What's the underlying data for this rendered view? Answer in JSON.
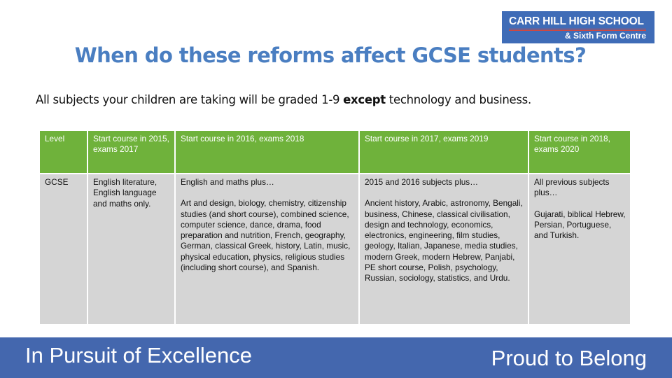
{
  "logo": {
    "line1": "CARR HILL HIGH SCHOOL",
    "line2": "& Sixth Form Centre"
  },
  "title": "When do these reforms affect GCSE students?",
  "subtitle": {
    "before": "All subjects your children are taking will be graded 1-9 ",
    "emphasis": "except",
    "after": " technology and business."
  },
  "table": {
    "headers": [
      "Level",
      "Start course in 2015, exams 2017",
      "Start course in 2016, exams 2018",
      "Start course in 2017, exams 2019",
      "Start course in 2018, exams 2020"
    ],
    "row": {
      "level": "GCSE",
      "col2": "English literature, English language and maths only.",
      "col3_intro": "English and maths plus…",
      "col3_list": "Art and design, biology, chemistry, citizenship studies (and short course), combined science, computer science, dance, drama, food preparation and nutrition, French, geography, German, classical Greek, history, Latin, music, physical education, physics, religious studies (including short course), and Spanish.",
      "col4_intro": "2015 and 2016 subjects plus…",
      "col4_list": "Ancient history, Arabic, astronomy, Bengali, business, Chinese, classical civilisation, design and technology, economics, electronics, engineering, film studies, geology, Italian, Japanese, media studies, modern Greek, modern Hebrew, Panjabi, PE short course, Polish, psychology, Russian, sociology, statistics, and Urdu.",
      "col5_intro": "All previous subjects plus…",
      "col5_list": "Gujarati, biblical Hebrew, Persian, Portuguese, and Turkish."
    }
  },
  "footer": {
    "left": "In Pursuit of Excellence",
    "right": "Proud to Belong"
  },
  "colors": {
    "title": "#4a7ec1",
    "header_green": "#6fb23b",
    "cell_grey": "#d5d5d5",
    "footer_blue": "#4467ae"
  }
}
